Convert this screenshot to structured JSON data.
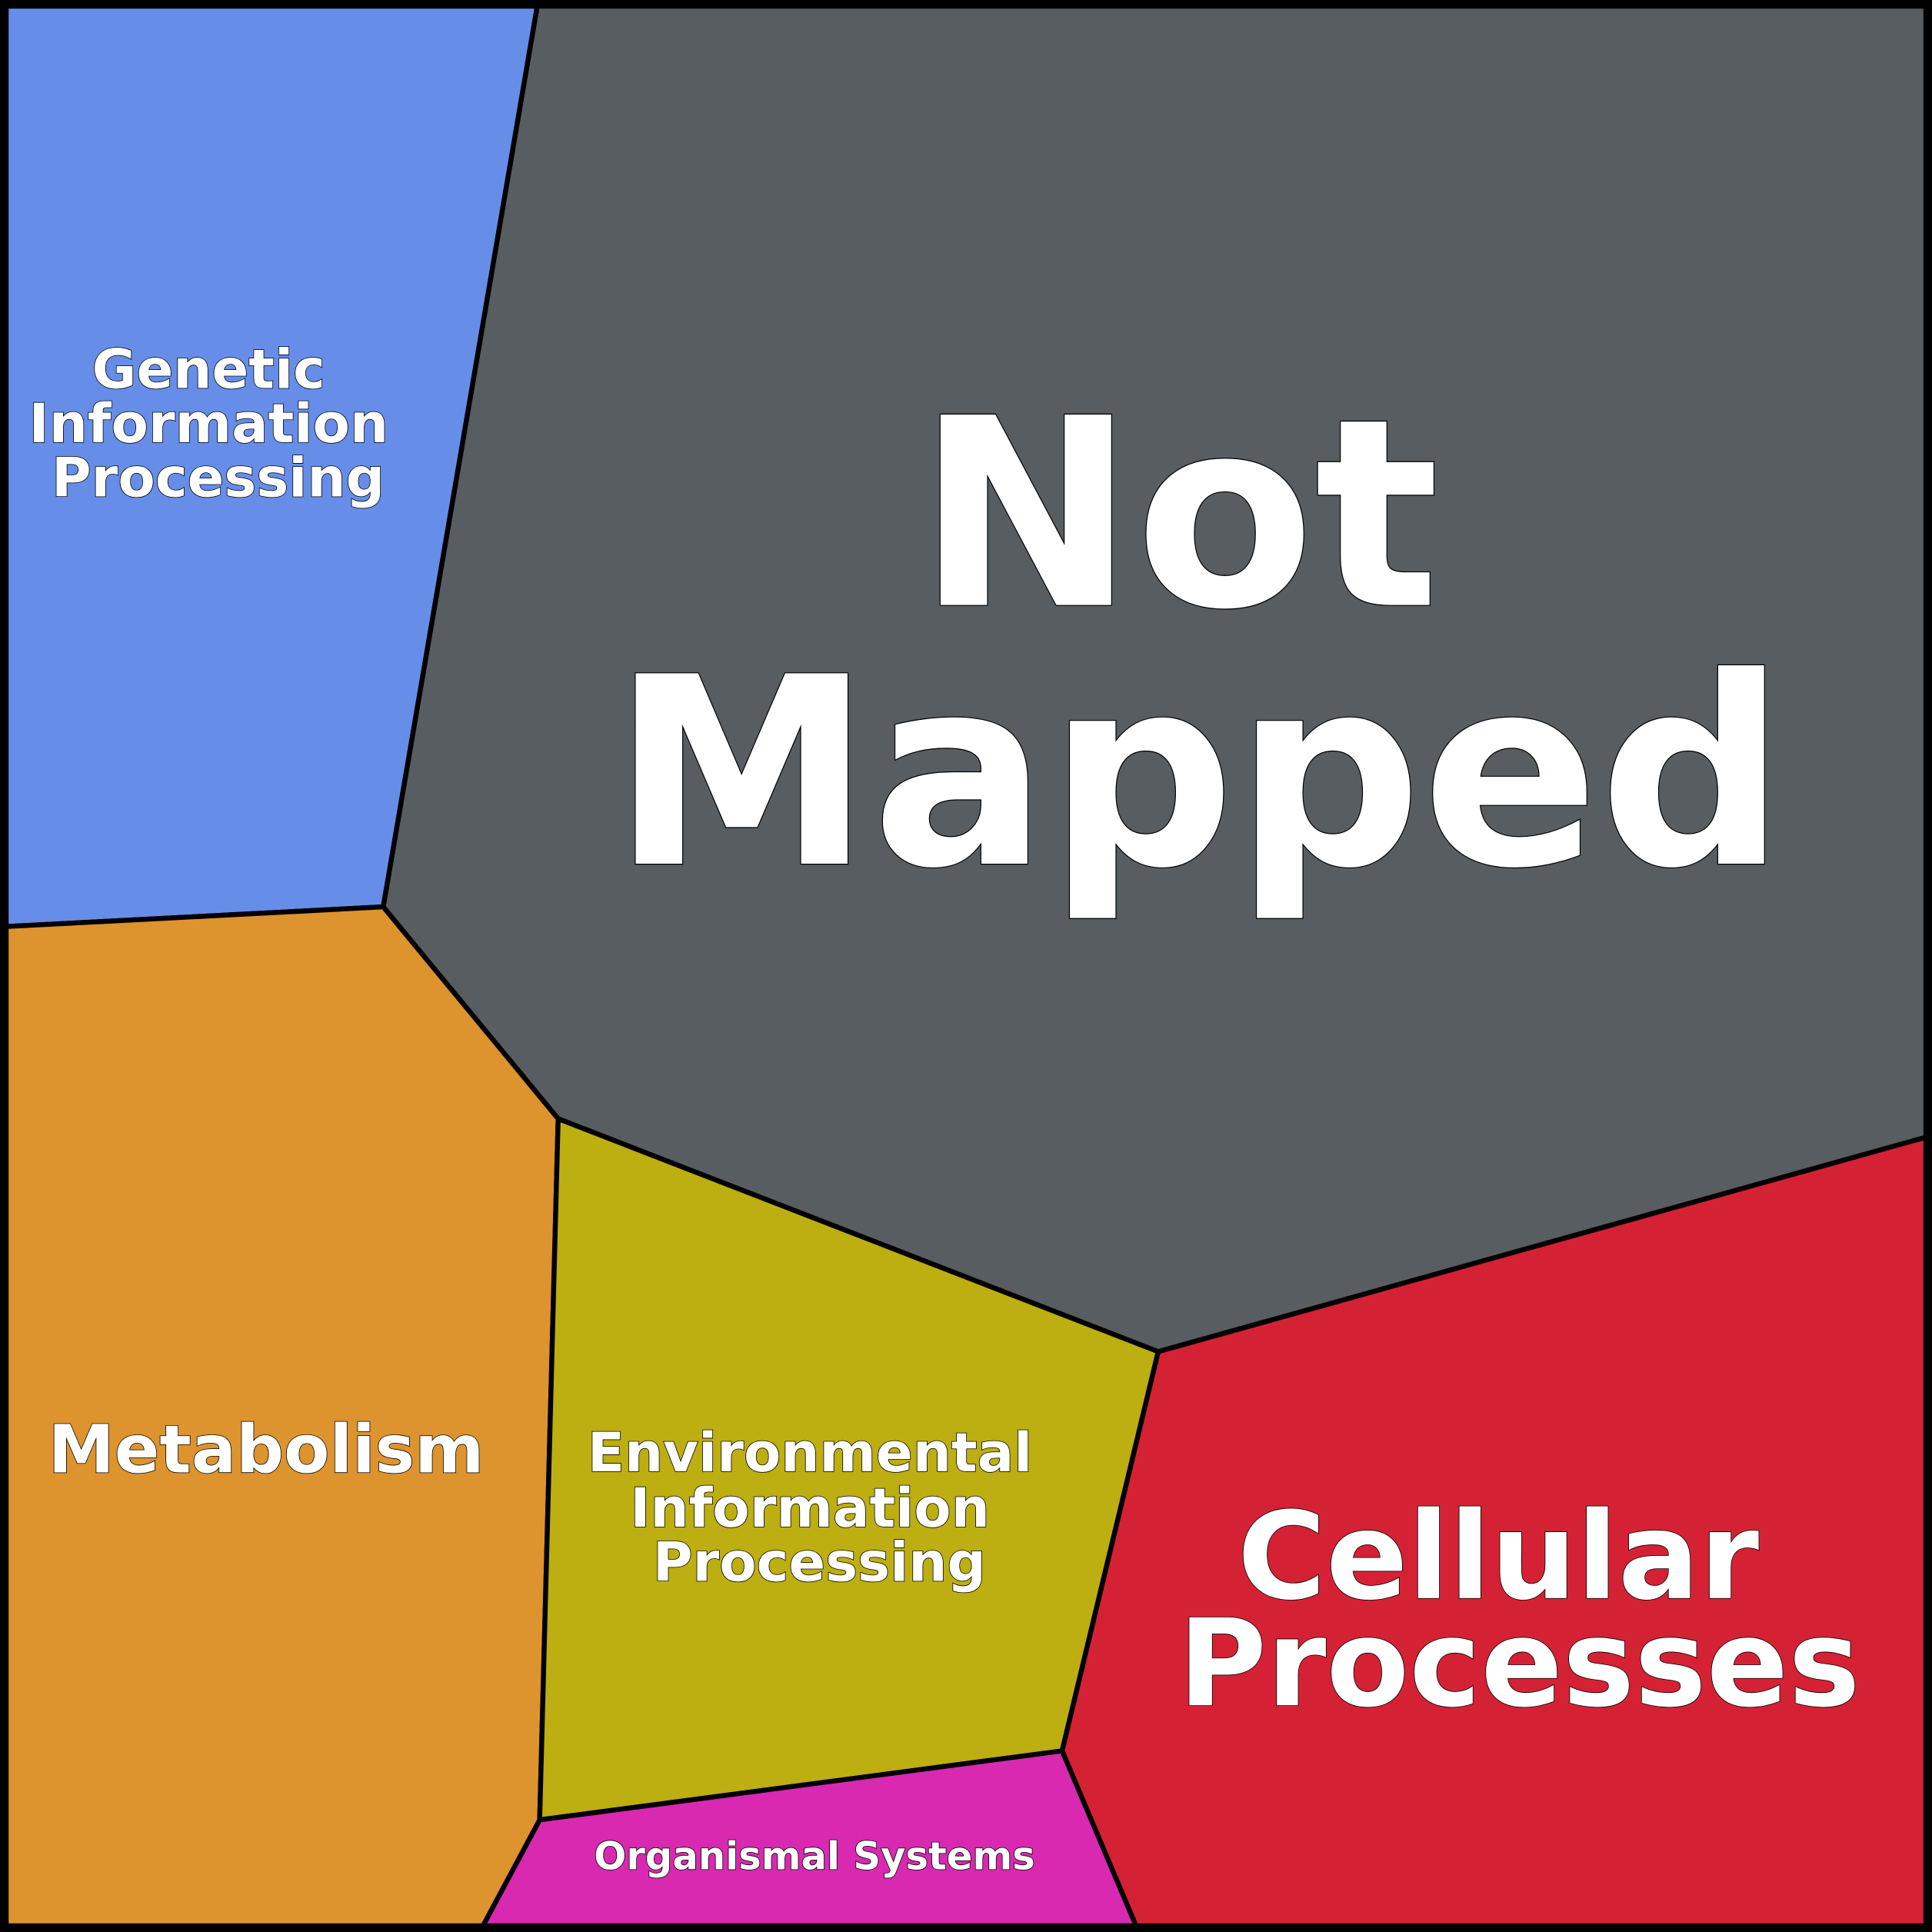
{
  "cells": {
    "not_mapped": {
      "label_lines": [
        "Not",
        "Mapped"
      ],
      "color": "#585d62"
    },
    "genetic": {
      "label_lines": [
        "Genetic",
        "Information",
        "Processing"
      ],
      "color": "#668ee9"
    },
    "metabolism": {
      "label_lines": [
        "Metabolism"
      ],
      "color": "#dd932e"
    },
    "environmental": {
      "label_lines": [
        "Environmental",
        "Information",
        "Processing"
      ],
      "color": "#bdae11"
    },
    "cellular": {
      "label_lines": [
        "Cellular",
        "Processes"
      ],
      "color": "#d42234"
    },
    "organismal": {
      "label_lines": [
        "Organismal Systems"
      ],
      "color": "#d829b0"
    }
  }
}
